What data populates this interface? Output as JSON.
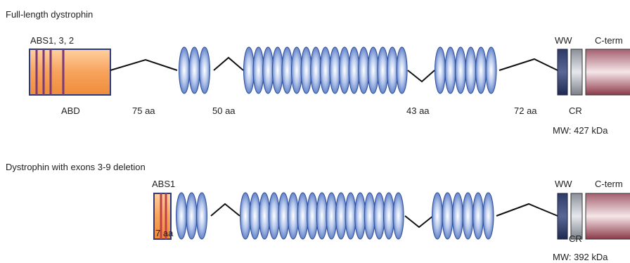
{
  "full": {
    "title": "Full-length dystrophin",
    "abs": "ABS1, 3, 2",
    "abd": "ABD",
    "linkers": [
      "75 aa",
      "50 aa",
      "43 aa",
      "72 aa"
    ],
    "ww": "WW",
    "cterm": "C-term",
    "cr": "CR",
    "mw": "MW: 427 kDa"
  },
  "deletion": {
    "title": "Dystrophin with exons 3-9 deletion",
    "abs": "ABS1",
    "short": "7 aa",
    "ww": "WW",
    "cterm": "C-term",
    "cr": "CR",
    "mw": "MW: 392 kDa"
  }
}
